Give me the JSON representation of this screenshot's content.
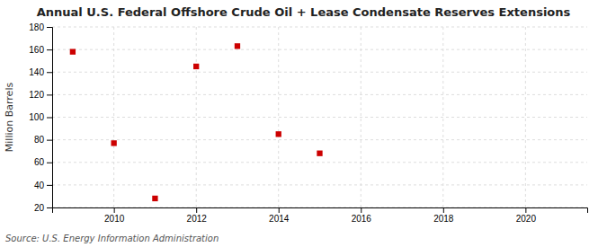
{
  "chart_data": {
    "type": "scatter",
    "title": "Annual U.S. Federal Offshore Crude Oil + Lease Condensate Reserves Extensions",
    "ylabel": "Million Barrels",
    "source": "Source: U.S. Energy Information Administration",
    "x": [
      2009,
      2010,
      2011,
      2012,
      2013,
      2014,
      2015
    ],
    "values": [
      158,
      77,
      28,
      145,
      163,
      85,
      68
    ],
    "color": "#cc0000",
    "marker": "square",
    "xlim": [
      2008.5,
      2021.5
    ],
    "ylim": [
      20,
      180
    ],
    "xticks": [
      2010,
      2012,
      2014,
      2016,
      2018,
      2020
    ],
    "yticks": [
      20,
      40,
      60,
      80,
      100,
      120,
      140,
      160,
      180
    ],
    "grid": true
  }
}
